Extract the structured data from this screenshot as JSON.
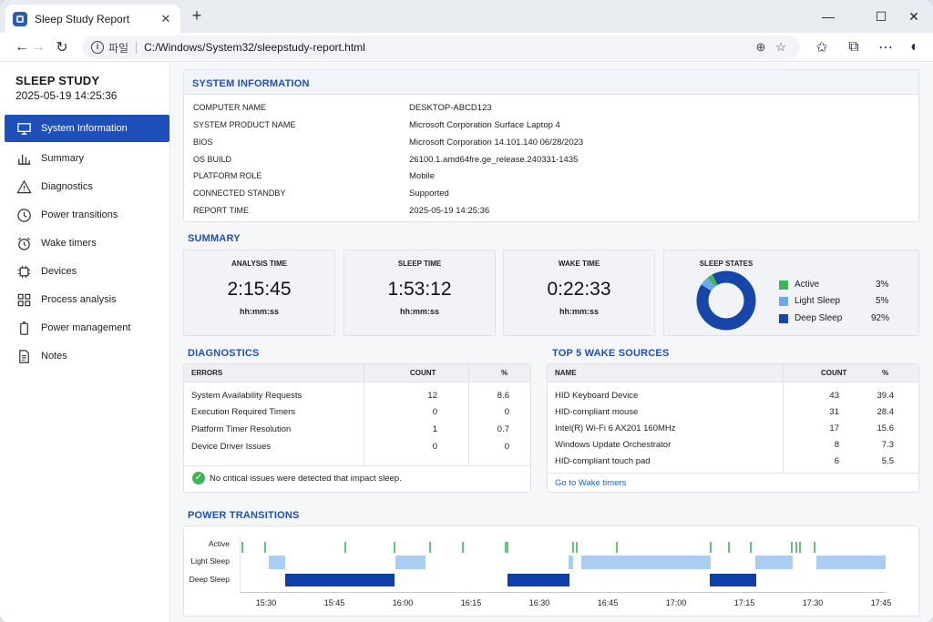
{
  "browser": {
    "tab_title": "Sleep Study Report",
    "new_tab": "+",
    "source_label": "파일",
    "url": "C:/Windows/System32/sleepstudy-report.html"
  },
  "sidebar": {
    "title": "SLEEP STUDY",
    "date": "2025-05-19 14:25:36",
    "items": [
      {
        "label": "System Information",
        "icon": "monitor-icon"
      },
      {
        "label": "Summary",
        "icon": "bar-chart-icon"
      },
      {
        "label": "Diagnostics",
        "icon": "warning-icon"
      },
      {
        "label": "Power transitions",
        "icon": "clock-icon"
      },
      {
        "label": "Wake timers",
        "icon": "alarm-clock-icon"
      },
      {
        "label": "Devices",
        "icon": "chip-icon"
      },
      {
        "label": "Process analysis",
        "icon": "grid-icon"
      },
      {
        "label": "Power management",
        "icon": "battery-icon"
      },
      {
        "label": "Notes",
        "icon": "document-icon"
      }
    ]
  },
  "system_info": {
    "title": "SYSTEM INFORMATION",
    "rows": [
      {
        "key": "COMPUTER NAME",
        "value": "DESKTOP-ABCD123"
      },
      {
        "key": "SYSTEM PRODUCT NAME",
        "value": "Microsoft Corporation Surface Laptop 4"
      },
      {
        "key": "BIOS",
        "value": "Microsoft Corporation 14.101.140 06/28/2023"
      },
      {
        "key": "OS BUILD",
        "value": "26100.1.amd64fre.ge_release.240331-1435"
      },
      {
        "key": "PLATFORM ROLE",
        "value": "Mobile"
      },
      {
        "key": "CONNECTED STANDBY",
        "value": "Supported"
      },
      {
        "key": "REPORT TIME",
        "value": "2025-05-19 14:25:36"
      }
    ]
  },
  "summary": {
    "title": "SUMMARY",
    "metrics": [
      {
        "label": "ANALYSIS TIME",
        "value": "2:15:45",
        "unit": "hh:mm:ss"
      },
      {
        "label": "SLEEP TIME",
        "value": "1:53:12",
        "unit": "hh:mm:ss"
      },
      {
        "label": "WAKE TIME",
        "value": "0:22:33",
        "unit": "hh:mm:ss"
      }
    ],
    "sleep_states": {
      "label": "SLEEP STATES",
      "items": [
        {
          "name": "Active",
          "percent": "3%",
          "value": 3,
          "color": "#3fb55a"
        },
        {
          "name": "Light Sleep",
          "percent": "5%",
          "value": 5,
          "color": "#6aaae8"
        },
        {
          "name": "Deep Sleep",
          "percent": "92%",
          "value": 92,
          "color": "#1745a8"
        }
      ]
    }
  },
  "diagnostics": {
    "title": "DIAGNOSTICS",
    "headers": [
      "ERRORS",
      "COUNT",
      "%"
    ],
    "rows": [
      {
        "name": "System Availability Requests",
        "count": "12",
        "pct": "8.6"
      },
      {
        "name": "Execution Required Timers",
        "count": "0",
        "pct": "0"
      },
      {
        "name": "Platform Timer Resolution",
        "count": "1",
        "pct": "0.7"
      },
      {
        "name": "Device Driver Issues",
        "count": "0",
        "pct": "0"
      }
    ],
    "status": "No critical issues were detected that impact sleep."
  },
  "wake_sources": {
    "title": "TOP 5 WAKE SOURCES",
    "headers": [
      "NAME",
      "COUNT",
      "%"
    ],
    "rows": [
      {
        "name": "HID Keyboard Device",
        "count": "43",
        "pct": "39.4"
      },
      {
        "name": "HID-compliant mouse",
        "count": "31",
        "pct": "28.4"
      },
      {
        "name": "Intel(R) Wi-Fi 6 AX201 160MHz",
        "count": "17",
        "pct": "15.6"
      },
      {
        "name": "Windows Update Orchestrator",
        "count": "8",
        "pct": "7.3"
      },
      {
        "name": "HID-compliant touch pad",
        "count": "6",
        "pct": "5.5"
      }
    ],
    "link": "Go to Wake timers"
  },
  "power_transitions": {
    "title": "POWER TRANSITIONS",
    "lanes": [
      "Active",
      "Light Sleep",
      "Deep Sleep"
    ],
    "ticks": [
      "15:30",
      "15:45",
      "16:00",
      "16:15",
      "16:30",
      "16:45",
      "17:00",
      "17:15",
      "17:30",
      "17:45"
    ],
    "colors": {
      "active": "#3fb55a",
      "light": "#a9cdf3",
      "deep": "#0f3fa6"
    }
  }
}
